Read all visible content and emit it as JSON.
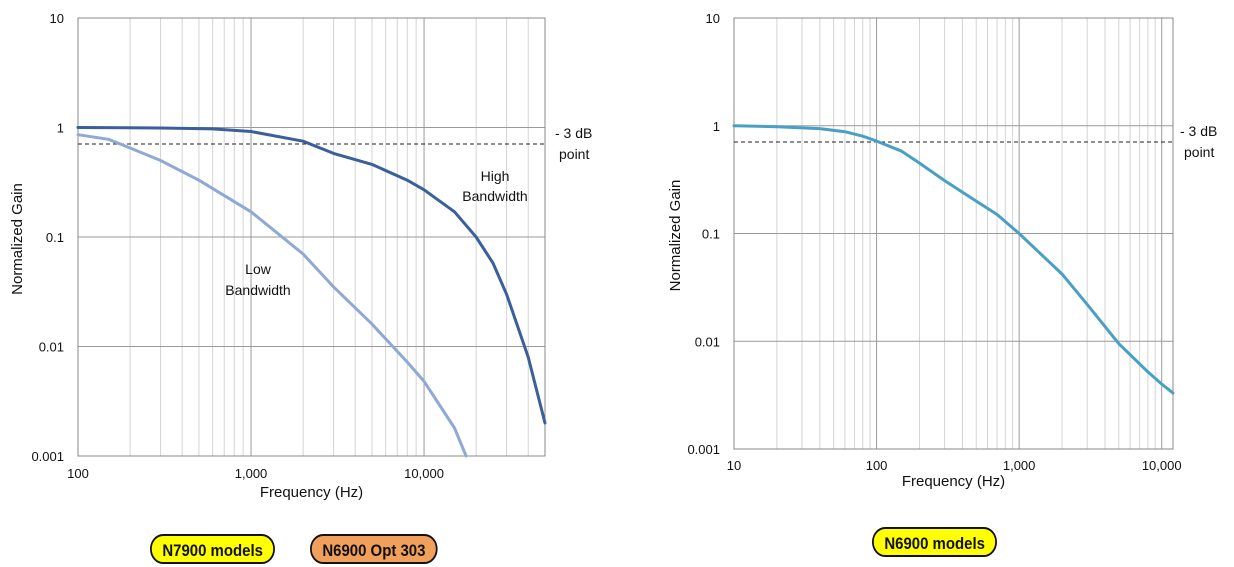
{
  "chart_data": [
    {
      "type": "line",
      "title": "",
      "xlabel": "Frequency (Hz)",
      "ylabel": "Normalized Gain",
      "xscale": "log",
      "yscale": "log",
      "xlim": [
        100,
        50000
      ],
      "ylim": [
        0.001,
        10
      ],
      "grid": true,
      "x_ticks": [
        {
          "value": 100,
          "label": "100"
        },
        {
          "value": 1000,
          "label": "1,000"
        },
        {
          "value": 10000,
          "label": "10,000"
        }
      ],
      "y_ticks": [
        {
          "value": 10,
          "label": "10"
        },
        {
          "value": 1,
          "label": "1"
        },
        {
          "value": 0.1,
          "label": "0.1"
        },
        {
          "value": 0.01,
          "label": "0.01"
        },
        {
          "value": 0.001,
          "label": "0.001"
        }
      ],
      "reference_line": {
        "value": 0.707,
        "label_line1": "- 3 dB",
        "label_line2": "point"
      },
      "series": [
        {
          "color": "#3a5f9a",
          "points": [
            [
              100,
              1.0
            ],
            [
              300,
              0.99
            ],
            [
              600,
              0.97
            ],
            [
              1000,
              0.92
            ],
            [
              2000,
              0.75
            ],
            [
              3000,
              0.58
            ],
            [
              5000,
              0.46
            ],
            [
              8000,
              0.33
            ],
            [
              10000,
              0.27
            ],
            [
              15000,
              0.17
            ],
            [
              20000,
              0.1
            ],
            [
              25000,
              0.058
            ],
            [
              30000,
              0.03
            ],
            [
              40000,
              0.008
            ],
            [
              50000,
              0.002
            ]
          ]
        },
        {
          "color": "#8fa9d4",
          "points": [
            [
              100,
              0.86
            ],
            [
              150,
              0.78
            ],
            [
              200,
              0.65
            ],
            [
              300,
              0.5
            ],
            [
              500,
              0.33
            ],
            [
              1000,
              0.17
            ],
            [
              2000,
              0.07
            ],
            [
              3000,
              0.035
            ],
            [
              5000,
              0.016
            ],
            [
              8000,
              0.0072
            ],
            [
              10000,
              0.0048
            ],
            [
              15000,
              0.0018
            ],
            [
              17500,
              0.001
            ]
          ]
        }
      ],
      "annotations": [
        {
          "id": "high",
          "line1": "High",
          "line2": "Bandwidth"
        },
        {
          "id": "low",
          "line1": "Low",
          "line2": "Bandwidth"
        }
      ]
    },
    {
      "type": "line",
      "title": "",
      "xlabel": "Frequency (Hz)",
      "ylabel": "Normalized Gain",
      "xscale": "log",
      "yscale": "log",
      "xlim": [
        10,
        12000
      ],
      "ylim": [
        0.001,
        10
      ],
      "grid": true,
      "x_ticks": [
        {
          "value": 10,
          "label": "10"
        },
        {
          "value": 100,
          "label": "100"
        },
        {
          "value": 1000,
          "label": "1,000"
        },
        {
          "value": 10000,
          "label": "10,000"
        }
      ],
      "y_ticks": [
        {
          "value": 10,
          "label": "10"
        },
        {
          "value": 1,
          "label": "1"
        },
        {
          "value": 0.1,
          "label": "0.1"
        },
        {
          "value": 0.01,
          "label": "0.01"
        },
        {
          "value": 0.001,
          "label": "0.001"
        }
      ],
      "reference_line": {
        "value": 0.707,
        "label_line1": "- 3 dB",
        "label_line2": "point"
      },
      "series": [
        {
          "color": "#4a9fc4",
          "points": [
            [
              10,
              1.0
            ],
            [
              20,
              0.98
            ],
            [
              40,
              0.94
            ],
            [
              60,
              0.88
            ],
            [
              80,
              0.8
            ],
            [
              100,
              0.72
            ],
            [
              150,
              0.58
            ],
            [
              200,
              0.45
            ],
            [
              300,
              0.31
            ],
            [
              500,
              0.2
            ],
            [
              700,
              0.15
            ],
            [
              1000,
              0.1
            ],
            [
              2000,
              0.042
            ],
            [
              3000,
              0.022
            ],
            [
              5000,
              0.0095
            ],
            [
              8000,
              0.0052
            ],
            [
              10000,
              0.004
            ],
            [
              12000,
              0.0033
            ]
          ]
        }
      ],
      "annotations": []
    }
  ],
  "badges": {
    "n7900": {
      "label": "N7900 models",
      "color": "#ffff00"
    },
    "n6900opt": {
      "label": "N6900 Opt 303",
      "color": "#f0a05a"
    },
    "n6900": {
      "label": "N6900 models",
      "color": "#ffff00"
    }
  }
}
